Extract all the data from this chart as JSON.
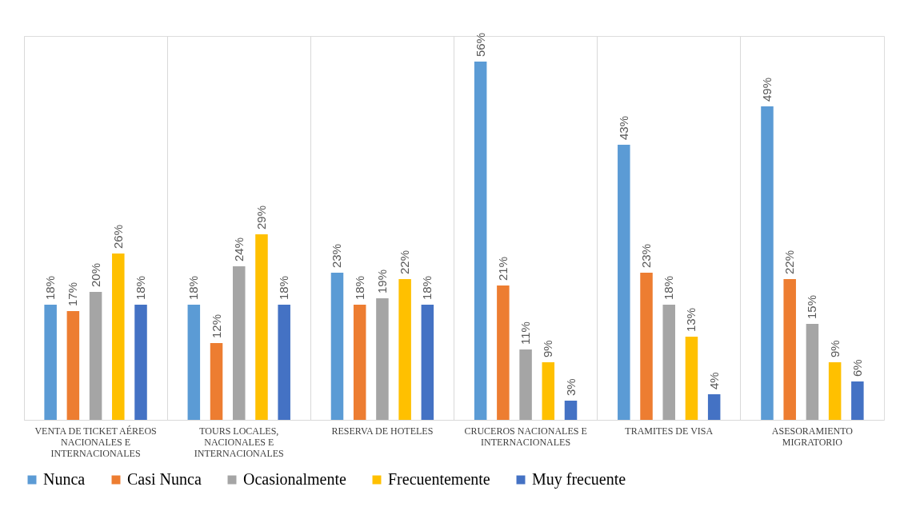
{
  "chart_data": {
    "type": "bar",
    "categories": [
      "VENTA DE TICKET AÉREOS NACIONALES E INTERNACIONALES",
      "TOURS LOCALES, NACIONALES E INTERNACIONALES",
      "RESERVA DE HOTELES",
      "CRUCEROS NACIONALES E INTERNACIONALES",
      "TRAMITES DE VISA",
      "ASESORAMIENTO MIGRATORIO"
    ],
    "ylim": [
      0,
      60
    ],
    "grid": "x",
    "legend": "bottom",
    "tick_labels": "x",
    "series": [
      {
        "name": "Nunca",
        "color": "#5b9bd5",
        "values": [
          18,
          18,
          23,
          56,
          43,
          49
        ],
        "value_labels": [
          "18%",
          "18%",
          "23%",
          "56%",
          "43%",
          "49%"
        ]
      },
      {
        "name": "Casi Nunca",
        "color": "#ed7d31",
        "values": [
          17,
          12,
          18,
          21,
          23,
          22
        ],
        "value_labels": [
          "17%",
          "12%",
          "18%",
          "21%",
          "23%",
          "22%"
        ]
      },
      {
        "name": "Ocasionalmente",
        "color": "#a5a5a5",
        "values": [
          20,
          24,
          19,
          11,
          18,
          15
        ],
        "value_labels": [
          "20%",
          "24%",
          "19%",
          "11%",
          "18%",
          "15%"
        ]
      },
      {
        "name": "Frecuentemente",
        "color": "#ffc000",
        "values": [
          26,
          29,
          22,
          9,
          13,
          9
        ],
        "value_labels": [
          "26%",
          "29%",
          "22%",
          "9%",
          "13%",
          "9%"
        ]
      },
      {
        "name": "Muy frecuente",
        "color": "#4472c4",
        "values": [
          18,
          18,
          18,
          3,
          4,
          6
        ],
        "value_labels": [
          "18%",
          "18%",
          "18%",
          "3%",
          "4%",
          "6%"
        ]
      }
    ]
  }
}
